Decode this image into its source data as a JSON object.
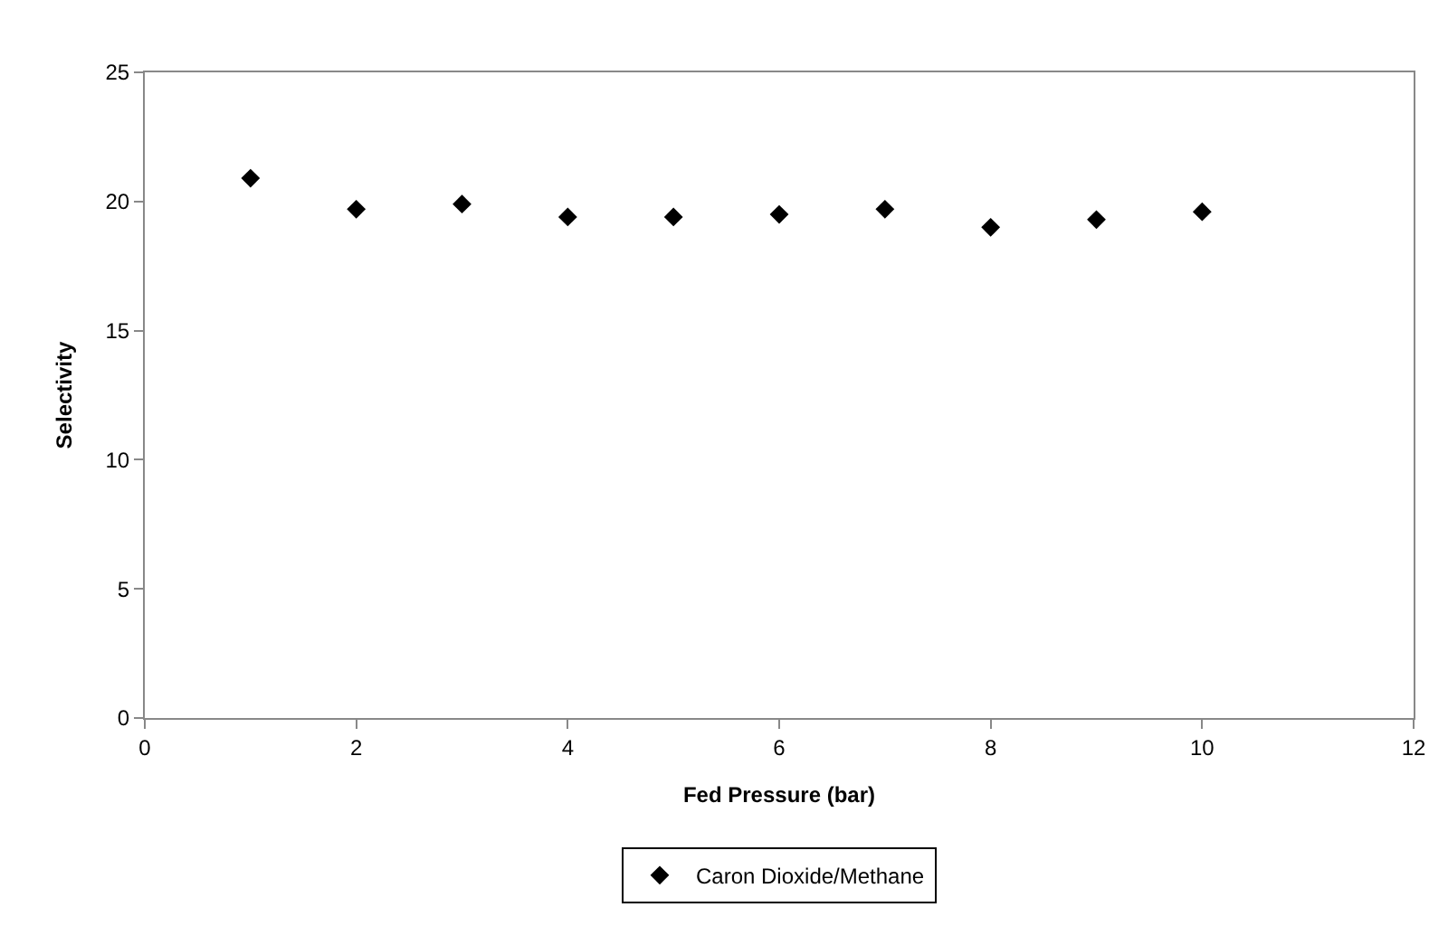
{
  "chart_data": {
    "type": "scatter",
    "xlabel": "Fed Pressure (bar)",
    "ylabel": "Selectivity",
    "x": [
      1,
      2,
      3,
      4,
      5,
      6,
      7,
      8,
      9,
      10
    ],
    "series": [
      {
        "name": "Caron Dioxide/Methane",
        "color": "#000000",
        "values": [
          20.9,
          19.7,
          19.9,
          19.4,
          19.4,
          19.5,
          19.7,
          19.0,
          19.3,
          19.6
        ]
      }
    ],
    "xlim": [
      0,
      12
    ],
    "xticks": [
      0,
      2,
      4,
      6,
      8,
      10,
      12
    ],
    "ylim": [
      0,
      25
    ],
    "yticks": [
      0,
      5,
      10,
      15,
      20,
      25
    ],
    "marker": "diamond",
    "legend": "bottom"
  }
}
